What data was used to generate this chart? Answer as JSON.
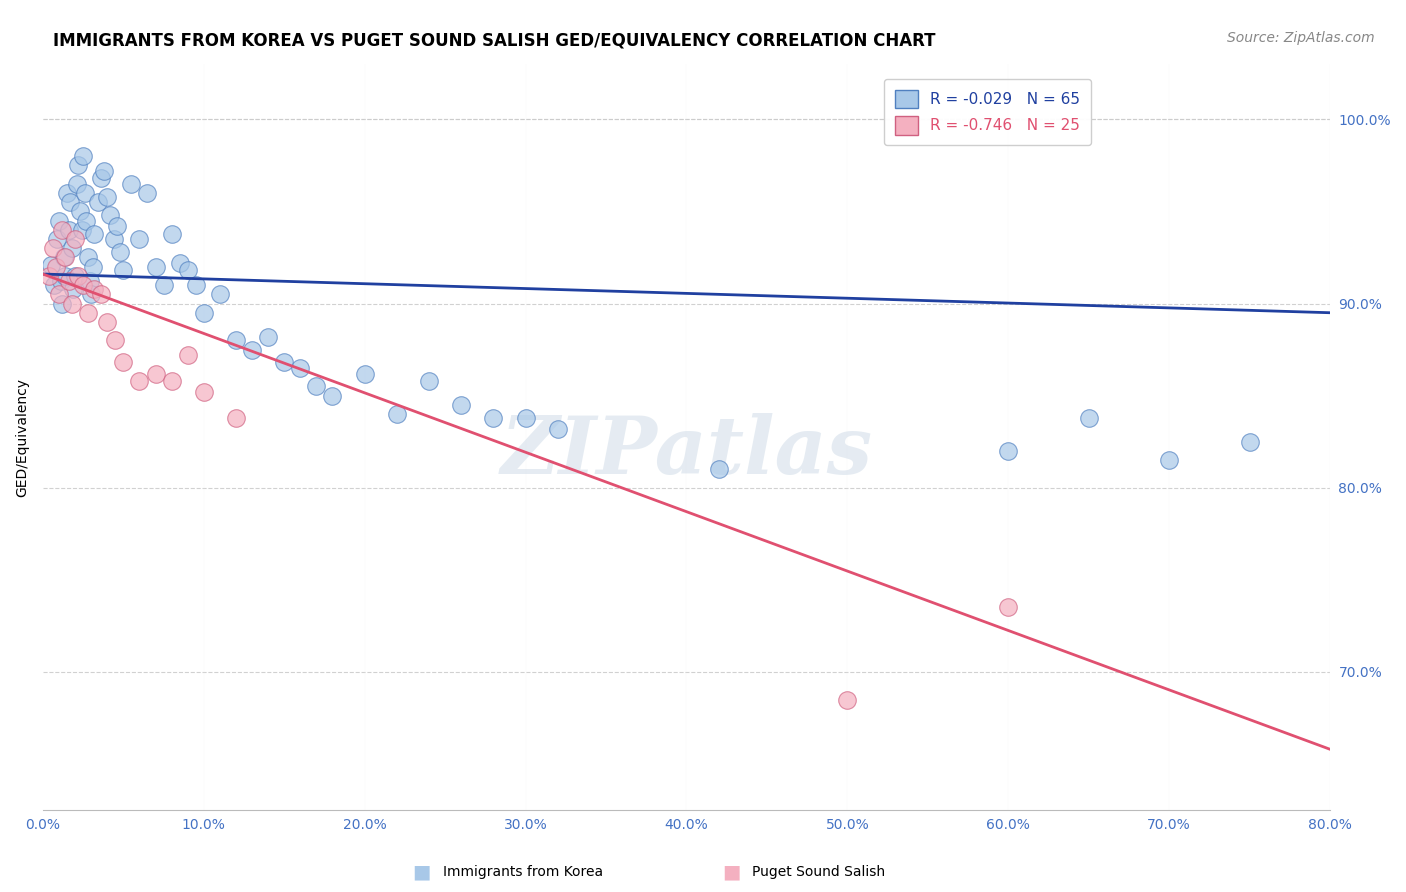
{
  "title": "IMMIGRANTS FROM KOREA VS PUGET SOUND SALISH GED/EQUIVALENCY CORRELATION CHART",
  "source": "Source: ZipAtlas.com",
  "ylabel": "GED/Equivalency",
  "legend_label1": "Immigrants from Korea",
  "legend_label2": "Puget Sound Salish",
  "r1": "-0.029",
  "n1": "65",
  "r2": "-0.746",
  "n2": "25",
  "xmin": 0.0,
  "xmax": 0.8,
  "ymin": 0.625,
  "ymax": 1.03,
  "blue_color": "#a8c8e8",
  "pink_color": "#f4b0c0",
  "blue_line_color": "#2040a0",
  "pink_line_color": "#e05070",
  "blue_dots_x": [
    0.005,
    0.007,
    0.009,
    0.01,
    0.011,
    0.012,
    0.013,
    0.014,
    0.015,
    0.016,
    0.017,
    0.018,
    0.019,
    0.02,
    0.021,
    0.022,
    0.023,
    0.024,
    0.025,
    0.026,
    0.027,
    0.028,
    0.029,
    0.03,
    0.031,
    0.032,
    0.034,
    0.036,
    0.038,
    0.04,
    0.042,
    0.044,
    0.046,
    0.048,
    0.05,
    0.055,
    0.06,
    0.065,
    0.07,
    0.075,
    0.08,
    0.085,
    0.09,
    0.095,
    0.1,
    0.11,
    0.12,
    0.13,
    0.14,
    0.15,
    0.16,
    0.17,
    0.18,
    0.2,
    0.22,
    0.24,
    0.26,
    0.28,
    0.3,
    0.32,
    0.42,
    0.6,
    0.65,
    0.7,
    0.75
  ],
  "blue_dots_y": [
    0.921,
    0.91,
    0.935,
    0.945,
    0.912,
    0.9,
    0.925,
    0.915,
    0.96,
    0.94,
    0.955,
    0.93,
    0.908,
    0.915,
    0.965,
    0.975,
    0.95,
    0.94,
    0.98,
    0.96,
    0.945,
    0.925,
    0.912,
    0.905,
    0.92,
    0.938,
    0.955,
    0.968,
    0.972,
    0.958,
    0.948,
    0.935,
    0.942,
    0.928,
    0.918,
    0.965,
    0.935,
    0.96,
    0.92,
    0.91,
    0.938,
    0.922,
    0.918,
    0.91,
    0.895,
    0.905,
    0.88,
    0.875,
    0.882,
    0.868,
    0.865,
    0.855,
    0.85,
    0.862,
    0.84,
    0.858,
    0.845,
    0.838,
    0.838,
    0.832,
    0.81,
    0.82,
    0.838,
    0.815,
    0.825
  ],
  "pink_dots_x": [
    0.004,
    0.006,
    0.008,
    0.01,
    0.012,
    0.014,
    0.016,
    0.018,
    0.02,
    0.022,
    0.025,
    0.028,
    0.032,
    0.036,
    0.04,
    0.045,
    0.05,
    0.06,
    0.07,
    0.08,
    0.09,
    0.1,
    0.12,
    0.5,
    0.6
  ],
  "pink_dots_y": [
    0.915,
    0.93,
    0.92,
    0.905,
    0.94,
    0.925,
    0.912,
    0.9,
    0.935,
    0.915,
    0.91,
    0.895,
    0.908,
    0.905,
    0.89,
    0.88,
    0.868,
    0.858,
    0.862,
    0.858,
    0.872,
    0.852,
    0.838,
    0.685,
    0.735
  ],
  "blue_trend_x0": 0.0,
  "blue_trend_y0": 0.916,
  "blue_trend_x1": 0.8,
  "blue_trend_y1": 0.895,
  "pink_trend_x0": 0.0,
  "pink_trend_y0": 0.916,
  "pink_trend_x1": 0.8,
  "pink_trend_y1": 0.658,
  "watermark": "ZIPatlas",
  "title_fontsize": 12,
  "axis_fontsize": 10,
  "tick_fontsize": 10,
  "source_fontsize": 10
}
